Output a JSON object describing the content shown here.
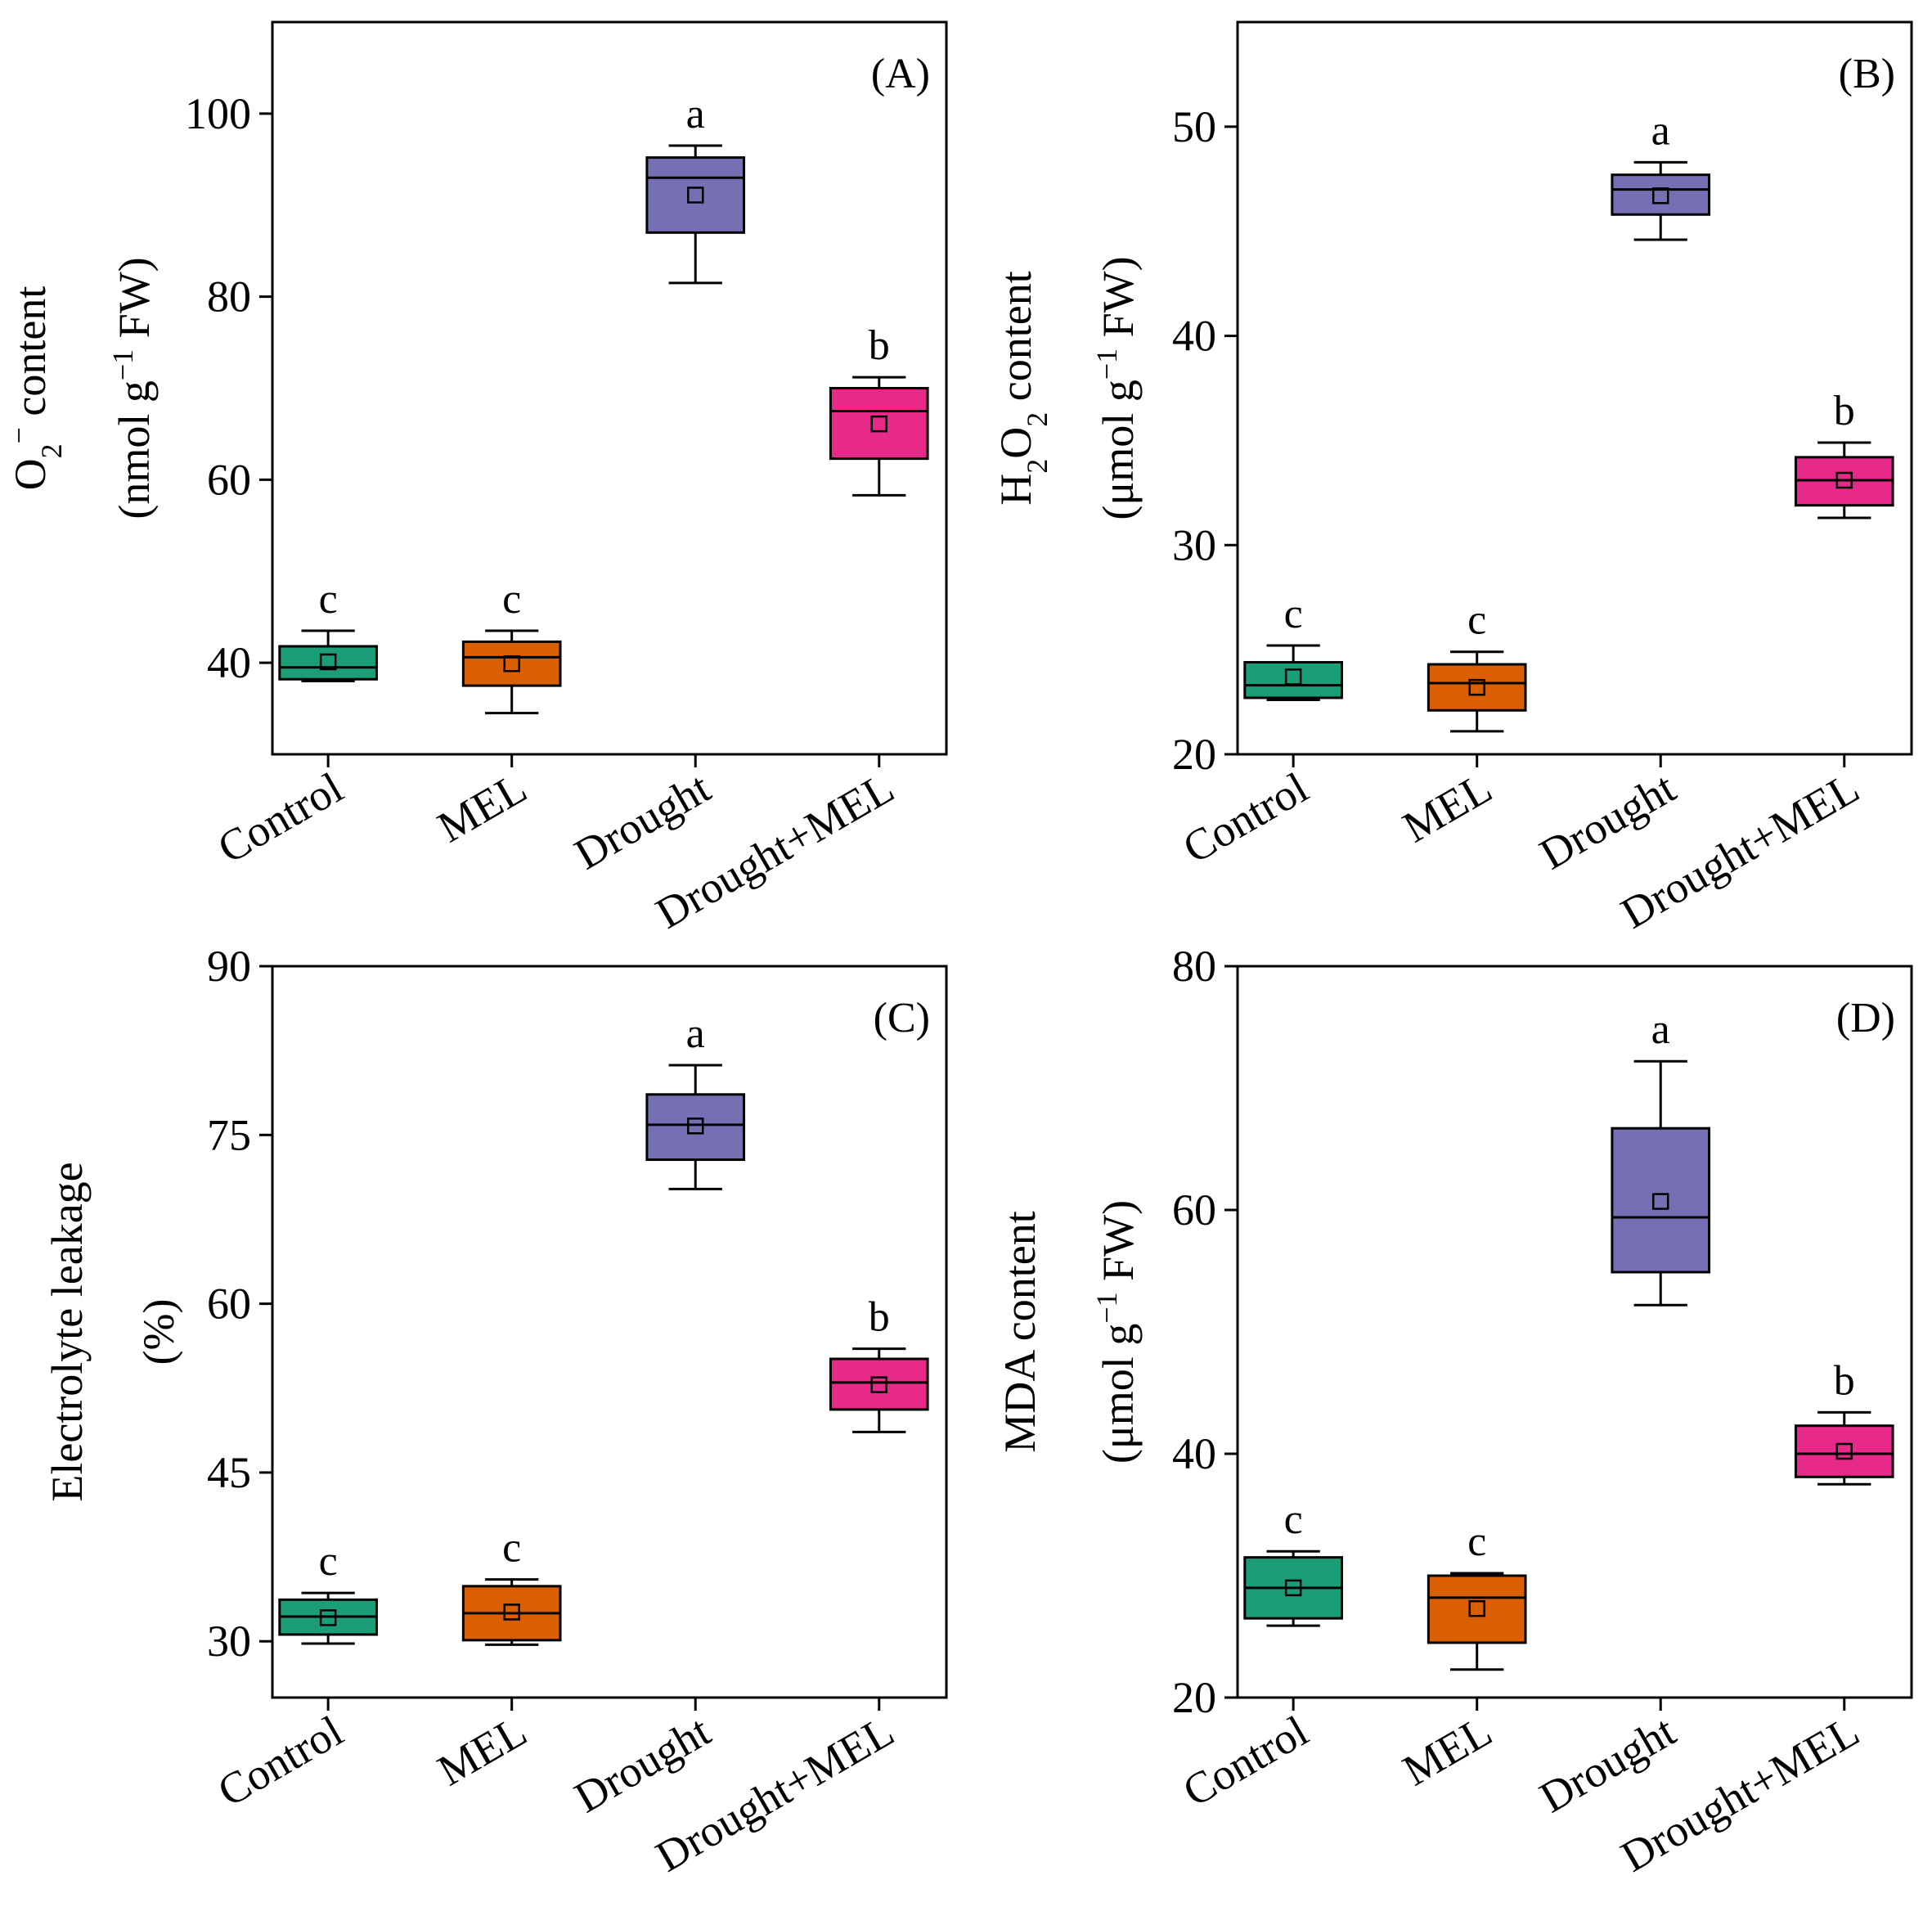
{
  "chart_data": [
    {
      "type": "box",
      "panel_label": "(A)",
      "ylabel_lines": [
        "O",
        "2",
        "−",
        " content",
        "(nmol g",
        "−1",
        " FW)"
      ],
      "yticks": [
        "40",
        "60",
        "80",
        "100"
      ],
      "ylim": [
        30,
        110
      ],
      "categories": [
        "Control",
        "MEL",
        "Drought",
        "Drought+MEL"
      ],
      "boxes": [
        {
          "name": "Control",
          "color": "#1b9e77",
          "min": 38,
          "q1": 38.2,
          "median": 39.5,
          "q3": 41.8,
          "max": 43.5,
          "mean": 40.1,
          "sig": "c"
        },
        {
          "name": "MEL",
          "color": "#d95f02",
          "min": 34.5,
          "q1": 37.5,
          "median": 40.6,
          "q3": 42.3,
          "max": 43.5,
          "mean": 39.9,
          "sig": "c"
        },
        {
          "name": "Drought",
          "color": "#7570b3",
          "min": 81.5,
          "q1": 87,
          "median": 93,
          "q3": 95.2,
          "max": 96.5,
          "mean": 91.1,
          "sig": "a"
        },
        {
          "name": "Drought+MEL",
          "color": "#e7298a",
          "min": 58.3,
          "q1": 62.3,
          "median": 67.5,
          "q3": 70,
          "max": 71.2,
          "mean": 66.1,
          "sig": "b"
        }
      ]
    },
    {
      "type": "box",
      "panel_label": "(B)",
      "ylabel_lines": [
        "H",
        "2",
        "O",
        "2",
        " content",
        "(μmol g",
        "−1",
        " FW)"
      ],
      "yticks": [
        "20",
        "30",
        "40",
        "50"
      ],
      "ylim": [
        20,
        55
      ],
      "categories": [
        "Control",
        "MEL",
        "Drought",
        "Drought+MEL"
      ],
      "boxes": [
        {
          "name": "Control",
          "color": "#1b9e77",
          "min": 22.6,
          "q1": 22.7,
          "median": 23.3,
          "q3": 24.4,
          "max": 25.2,
          "mean": 23.7,
          "sig": "c"
        },
        {
          "name": "MEL",
          "color": "#d95f02",
          "min": 21.1,
          "q1": 22.1,
          "median": 23.4,
          "q3": 24.3,
          "max": 24.9,
          "mean": 23.2,
          "sig": "c"
        },
        {
          "name": "Drought",
          "color": "#7570b3",
          "min": 44.6,
          "q1": 45.8,
          "median": 47.0,
          "q3": 47.7,
          "max": 48.3,
          "mean": 46.7,
          "sig": "a"
        },
        {
          "name": "Drought+MEL",
          "color": "#e7298a",
          "min": 31.3,
          "q1": 31.9,
          "median": 33.1,
          "q3": 34.2,
          "max": 34.9,
          "mean": 33.1,
          "sig": "b"
        }
      ]
    },
    {
      "type": "box",
      "panel_label": "(C)",
      "ylabel_lines": [
        "Electrolyte leakage",
        "(%)"
      ],
      "yticks": [
        "30",
        "45",
        "60",
        "75",
        "90"
      ],
      "ylim": [
        25,
        90
      ],
      "categories": [
        "Control",
        "MEL",
        "Drought",
        "Drought+MEL"
      ],
      "boxes": [
        {
          "name": "Control",
          "color": "#1b9e77",
          "min": 29.8,
          "q1": 30.6,
          "median": 32.2,
          "q3": 33.7,
          "max": 34.3,
          "mean": 32.1,
          "sig": "c"
        },
        {
          "name": "MEL",
          "color": "#d95f02",
          "min": 29.7,
          "q1": 30.1,
          "median": 32.5,
          "q3": 34.9,
          "max": 35.5,
          "mean": 32.6,
          "sig": "c"
        },
        {
          "name": "Drought",
          "color": "#7570b3",
          "min": 70.2,
          "q1": 72.8,
          "median": 75.9,
          "q3": 78.6,
          "max": 81.2,
          "mean": 75.8,
          "sig": "a"
        },
        {
          "name": "Drought+MEL",
          "color": "#e7298a",
          "min": 48.6,
          "q1": 50.6,
          "median": 53.0,
          "q3": 55.1,
          "max": 56.0,
          "mean": 52.8,
          "sig": "b"
        }
      ]
    },
    {
      "type": "box",
      "panel_label": "(D)",
      "ylabel_lines": [
        "MDA content",
        "(μmol g",
        "−1",
        " FW)"
      ],
      "yticks": [
        "20",
        "40",
        "60",
        "80"
      ],
      "ylim": [
        20,
        80
      ],
      "categories": [
        "Control",
        "MEL",
        "Drought",
        "Drought+MEL"
      ],
      "boxes": [
        {
          "name": "Control",
          "color": "#1b9e77",
          "min": 25.9,
          "q1": 26.5,
          "median": 29.0,
          "q3": 31.5,
          "max": 32.0,
          "mean": 29.0,
          "sig": "c"
        },
        {
          "name": "MEL",
          "color": "#d95f02",
          "min": 22.3,
          "q1": 24.5,
          "median": 28.2,
          "q3": 30.0,
          "max": 30.2,
          "mean": 27.3,
          "sig": "c"
        },
        {
          "name": "Drought",
          "color": "#7570b3",
          "min": 52.2,
          "q1": 54.9,
          "median": 59.4,
          "q3": 66.7,
          "max": 72.2,
          "mean": 60.7,
          "sig": "a"
        },
        {
          "name": "Drought+MEL",
          "color": "#e7298a",
          "min": 37.5,
          "q1": 38.1,
          "median": 40.0,
          "q3": 42.3,
          "max": 43.4,
          "mean": 40.2,
          "sig": "b"
        }
      ]
    }
  ]
}
